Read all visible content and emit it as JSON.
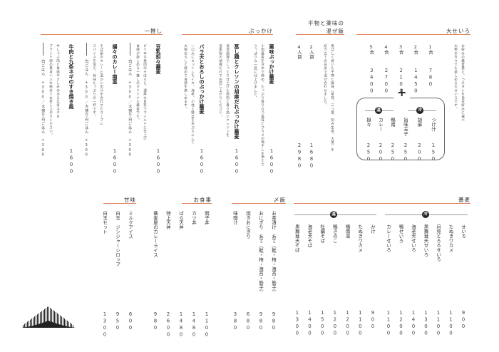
{
  "colors": {
    "accent": "#e0825c",
    "badge": "#222222"
  },
  "oseiro": {
    "title": "大せいろ",
    "description": [
      "お好みの蕎麦量と、つけダレを自分好みに選べ",
      "大勢の方々でも楽しめる大せいろです。"
    ],
    "items": [
      {
        "label": "1合",
        "price": "780"
      },
      {
        "label": "2合",
        "price": "1450"
      },
      {
        "label": "3合",
        "price": "2100"
      },
      {
        "label": "4合",
        "price": "2700"
      },
      {
        "label": "5合",
        "price": "3400"
      }
    ],
    "plus": "+",
    "cold": {
      "badge": "冷",
      "items": [
        {
          "label": "つけ汁",
          "price": "150"
        },
        {
          "label": "胡麻",
          "price": "200"
        },
        {
          "label": "旨味玉子",
          "price": "250"
        }
      ]
    },
    "hot": {
      "badge": "温",
      "items": [
        {
          "label": "鴨南",
          "price": "250"
        },
        {
          "label": "カレー",
          "price": "200"
        },
        {
          "label": "担々",
          "price": "250"
        }
      ]
    }
  },
  "mazemeshi": {
    "title_line1": "干物と薬味の",
    "title_line2": "混ぜ飯",
    "description": [
      "香ばしく焼いた干物と薬味（茗荷、三つ葉、刻み生姜、大葉）を",
      "炊き立ての白米で混ぜ合わせました。"
    ],
    "items": [
      {
        "label": "2人前",
        "price": "1680"
      },
      {
        "label": "4人前",
        "price": "2980"
      }
    ]
  },
  "bukkake": {
    "title": "ぶっかけ",
    "items": [
      {
        "label": "薬味ぶっかけ蕎麦",
        "description": [
          "十割蕎麦を冷水で締め、たっぷり香り立つ薬味とワカメの梅干しを添えて",
          "さっぱりな一品に仕上げました。"
        ],
        "price": "1600"
      },
      {
        "label": "蒸し鶏とクレソンの胡麻だれぶっかけ蕎麦",
        "description": [
          "低温調理でしっとり仕上げた鶏肉と香り高いクレソンを",
          "自家製の胡麻だれでお召し上がりください。"
        ],
        "price": "1600"
      },
      {
        "label": "バラ天とおろしのぶっかけ蕎麦",
        "description": [
          "一口大にカットしたイカ、海老、小柱と野菜を天ぷらにして",
          "大根おろしと絡めて食感を楽しめます。"
        ],
        "price": "1600"
      }
    ]
  },
  "osusume": {
    "title": "一推し",
    "items": [
      {
        "label": "豆乳担々蕎麦",
        "description": [
          "ピリ辛な挽肉のそぼろと、濃厚な豆乳でマイルドに仕上げ",
          "食感が楽しめる一推しのオリジナル蕎麦です。"
        ],
        "sub": "白ごはん　+300／大盛り白ごはん　+300",
        "price": "1600"
      },
      {
        "label": "揚々のカレー南蛮",
        "description": [
          "そば屋のカレーと温かい出汁を合わせたスープに",
          "スパイスを加え、旨味たっぷりの一杯です。"
        ],
        "sub": "白ごはん　+300／大盛り白ごはん　+300",
        "price": "1600"
      },
      {
        "label": "牛肉と九条ネギのすき焼き風",
        "description": [
          "牛しゃぶ肉と食感やさしみのある九条ネギを",
          "ブランド卵の黄身へ入れ絡めてお召し上がりください。"
        ],
        "sub": "白ごはん　+300／大盛り白ごはん　+300",
        "price": "1600"
      }
    ]
  },
  "soba": {
    "title": "蕎麦",
    "cold": {
      "badge": "冷",
      "items": [
        {
          "label": "せいろ",
          "price": "900"
        },
        {
          "label": "たぬきワカメ",
          "price": "1100"
        },
        {
          "label": "月見とろろせいろ",
          "price": "1100"
        },
        {
          "label": "黒舞茸天せいろ",
          "price": "1300"
        },
        {
          "label": "海老天せいろ",
          "price": "1400"
        },
        {
          "label": "鴨せいろ",
          "price": "1200"
        },
        {
          "label": "カレーせいろ",
          "price": "1100"
        }
      ]
    },
    "hot": {
      "badge": "温",
      "items": [
        {
          "label": "かけ",
          "price": "900"
        },
        {
          "label": "たぬきワカメ",
          "price": "1100"
        },
        {
          "label": "鴨南蛮",
          "price": "1200"
        },
        {
          "label": "鴨きのこ",
          "price": "1200"
        },
        {
          "label": "牡蠣そば",
          "price": "1500"
        },
        {
          "label": "海老天そば",
          "price": "1400"
        },
        {
          "label": "黒舞茸天そば",
          "price": "1300"
        }
      ]
    }
  },
  "shime": {
    "title": "〆飯",
    "items": [
      {
        "label": "お茶漬け　あて（鮭・梅・海苔・筋子）",
        "price": "980"
      },
      {
        "label": "おにぎり　あて（鮭・梅・海苔・筋子）",
        "price": "980"
      },
      {
        "label": "焼きおにぎり",
        "price": "680"
      },
      {
        "label": "味噌汁",
        "price": "380"
      }
    ]
  },
  "meals": {
    "title": "お食事",
    "items": [
      {
        "label": "親子丼",
        "price": "1100"
      },
      {
        "label": "カツ丼",
        "price": "1480"
      },
      {
        "label": "ばら天丼",
        "price": "1480"
      },
      {
        "label": "特上天丼",
        "price": "2600"
      },
      {
        "label": "蕎麦屋のカレーライス",
        "price": "980"
      }
    ]
  },
  "sweets": {
    "title": "甘味",
    "items": [
      {
        "label": "ミルクアイス",
        "price": "600"
      },
      {
        "label": "白玉　ジンジャーシロップ",
        "price": "950"
      },
      {
        "label": "白玉セット",
        "price": "1300"
      }
    ]
  },
  "logo": {
    "icon": "mountain-bars-logo"
  }
}
